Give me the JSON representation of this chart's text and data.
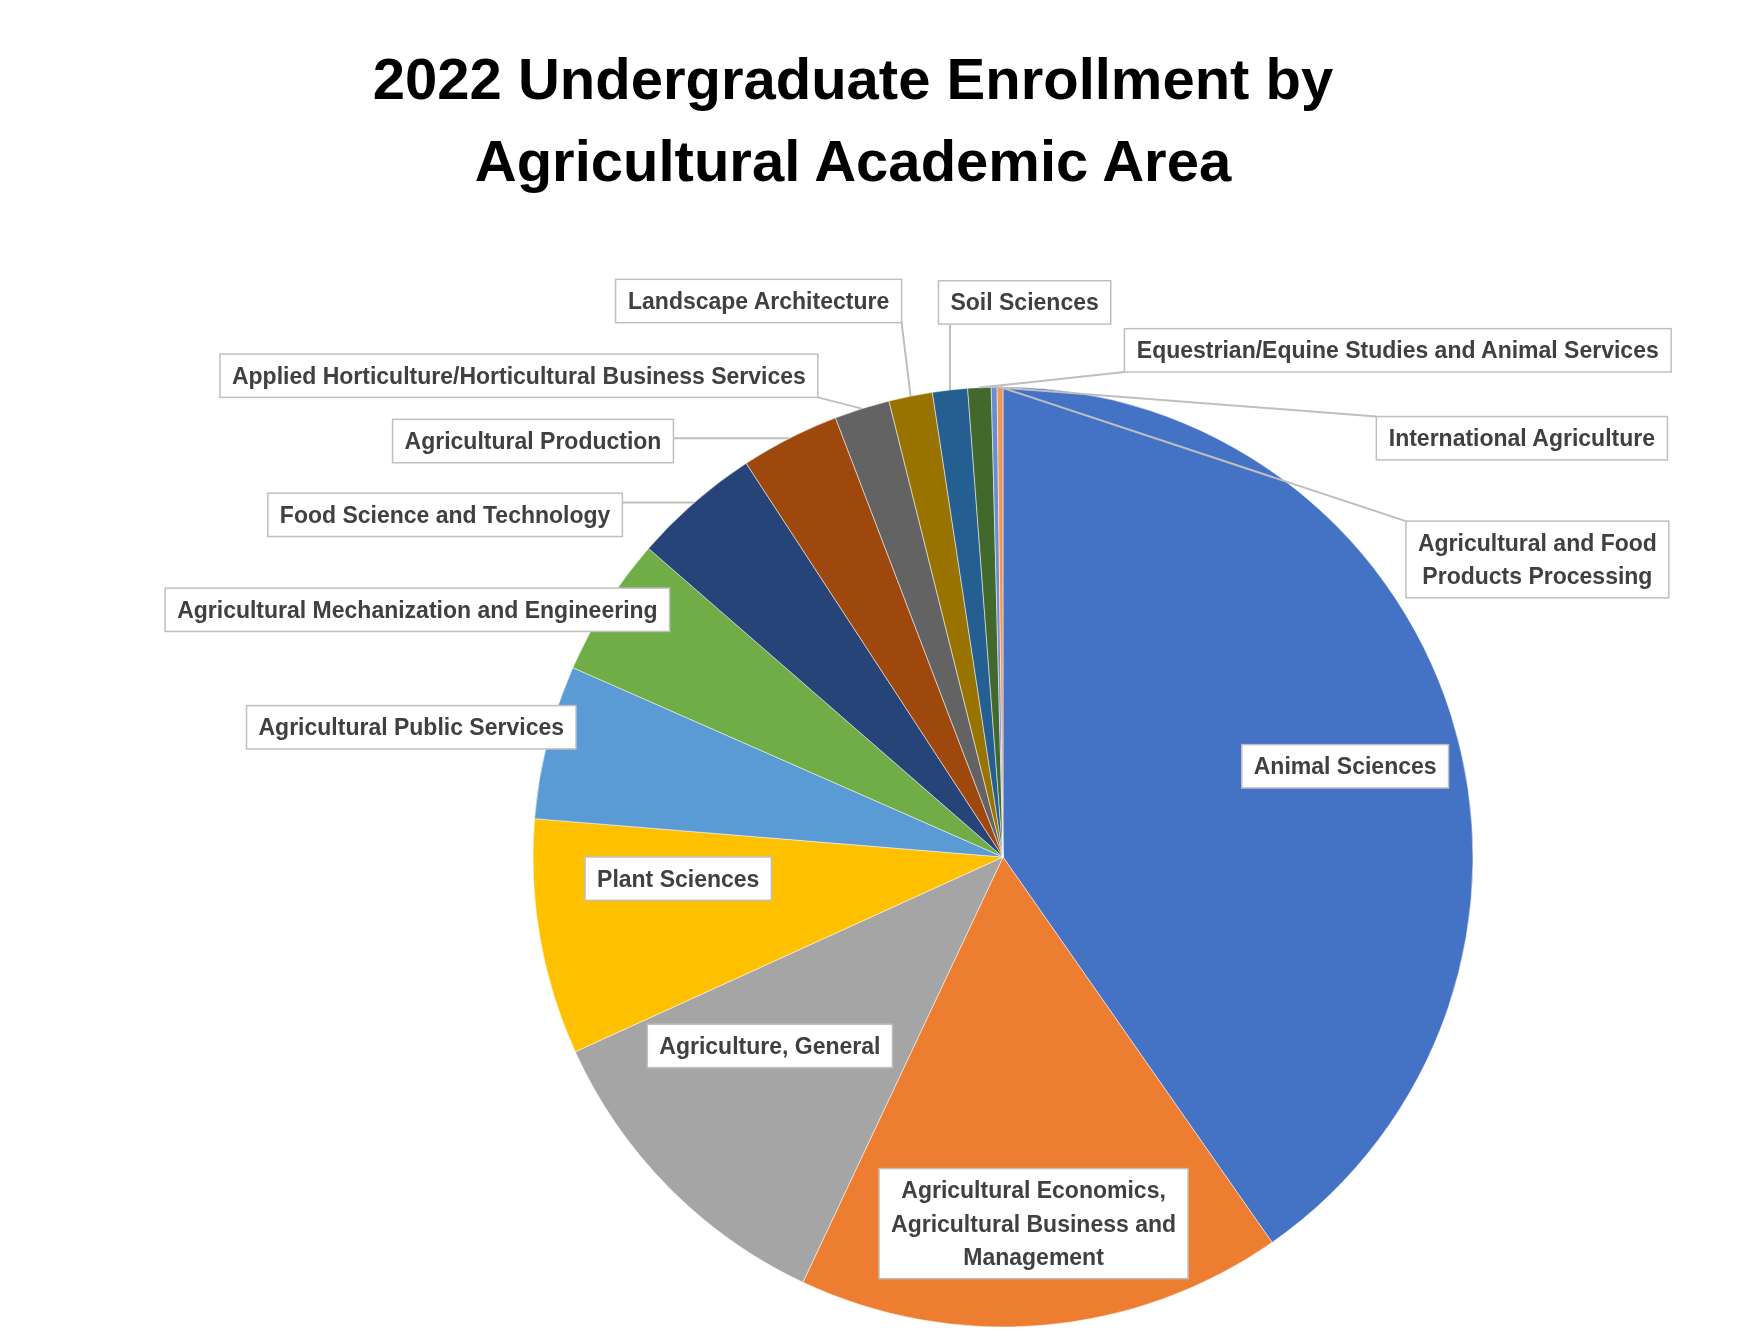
{
  "chart_data": {
    "type": "pie",
    "title": "2022 Undergraduate Enrollment by Agricultural Academic Area",
    "categories": [
      "Animal Sciences",
      "Agricultural Economics, Agricultural Business and Management",
      "Agriculture, General",
      "Plant Sciences",
      "Agricultural Public Services",
      "Agricultural Mechanization and Engineering",
      "Food Science and Technology",
      "Agricultural Production",
      "Applied Horticulture/Horticultural Business Services",
      "Landscape Architecture",
      "Soil Sciences",
      "Equestrian/Equine Studies and Animal Services",
      "International Agriculture",
      "Agricultural and Food Products Processing"
    ],
    "values": [
      40.3,
      16.7,
      11.2,
      8.1,
      5.3,
      4.8,
      4.4,
      3.4,
      1.9,
      1.5,
      1.2,
      0.8,
      0.2,
      0.2
    ],
    "colors": [
      "#4472c4",
      "#ed7d31",
      "#a5a5a5",
      "#ffc000",
      "#5b9bd5",
      "#70ad47",
      "#264478",
      "#9e480e",
      "#636363",
      "#997300",
      "#255e91",
      "#43682b",
      "#698ed0",
      "#f1975a"
    ]
  }
}
